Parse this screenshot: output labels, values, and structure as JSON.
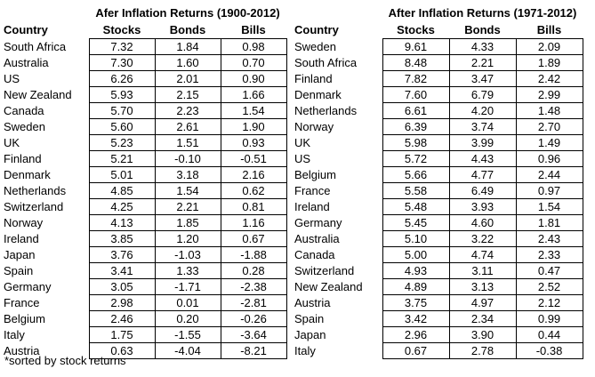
{
  "page": {
    "background": "#ffffff",
    "text_color": "#000000",
    "border_color": "#000000"
  },
  "footnote": "*sorted by stock returns",
  "chart_data": [
    {
      "type": "table",
      "title": "Afer Inflation Returns (1900-2012)",
      "columns": [
        "Country",
        "Stocks",
        "Bonds",
        "Bills"
      ],
      "rows": [
        [
          "South Africa",
          7.32,
          1.84,
          0.98
        ],
        [
          "Australia",
          7.3,
          1.6,
          0.7
        ],
        [
          "US",
          6.26,
          2.01,
          0.9
        ],
        [
          "New Zealand",
          5.93,
          2.15,
          1.66
        ],
        [
          "Canada",
          5.7,
          2.23,
          1.54
        ],
        [
          "Sweden",
          5.6,
          2.61,
          1.9
        ],
        [
          "UK",
          5.23,
          1.51,
          0.93
        ],
        [
          "Finland",
          5.21,
          -0.1,
          -0.51
        ],
        [
          "Denmark",
          5.01,
          3.18,
          2.16
        ],
        [
          "Netherlands",
          4.85,
          1.54,
          0.62
        ],
        [
          "Switzerland",
          4.25,
          2.21,
          0.81
        ],
        [
          "Norway",
          4.13,
          1.85,
          1.16
        ],
        [
          "Ireland",
          3.85,
          1.2,
          0.67
        ],
        [
          "Japan",
          3.76,
          -1.03,
          -1.88
        ],
        [
          "Spain",
          3.41,
          1.33,
          0.28
        ],
        [
          "Germany",
          3.05,
          -1.71,
          -2.38
        ],
        [
          "France",
          2.98,
          0.01,
          -2.81
        ],
        [
          "Belgium",
          2.46,
          0.2,
          -0.26
        ],
        [
          "Italy",
          1.75,
          -1.55,
          -3.64
        ],
        [
          "Austria",
          0.63,
          -4.04,
          -8.21
        ]
      ],
      "note": "sorted by stock returns descending",
      "value_format": "2 decimals"
    },
    {
      "type": "table",
      "title": "After Inflation Returns (1971-2012)",
      "columns": [
        "Country",
        "Stocks",
        "Bonds",
        "Bills"
      ],
      "rows": [
        [
          "Sweden",
          9.61,
          4.33,
          2.09
        ],
        [
          "South Africa",
          8.48,
          2.21,
          1.89
        ],
        [
          "Finland",
          7.82,
          3.47,
          2.42
        ],
        [
          "Denmark",
          7.6,
          6.79,
          2.99
        ],
        [
          "Netherlands",
          6.61,
          4.2,
          1.48
        ],
        [
          "Norway",
          6.39,
          3.74,
          2.7
        ],
        [
          "UK",
          5.98,
          3.99,
          1.49
        ],
        [
          "US",
          5.72,
          4.43,
          0.96
        ],
        [
          "Belgium",
          5.66,
          4.77,
          2.44
        ],
        [
          "France",
          5.58,
          6.49,
          0.97
        ],
        [
          "Ireland",
          5.48,
          3.93,
          1.54
        ],
        [
          "Germany",
          5.45,
          4.6,
          1.81
        ],
        [
          "Australia",
          5.1,
          3.22,
          2.43
        ],
        [
          "Canada",
          5.0,
          4.74,
          2.33
        ],
        [
          "Switzerland",
          4.93,
          3.11,
          0.47
        ],
        [
          "New Zealand",
          4.89,
          3.13,
          2.52
        ],
        [
          "Austria",
          3.75,
          4.97,
          2.12
        ],
        [
          "Spain",
          3.42,
          2.34,
          0.99
        ],
        [
          "Japan",
          2.96,
          3.9,
          0.44
        ],
        [
          "Italy",
          0.67,
          2.78,
          -0.38
        ]
      ],
      "note": "sorted by stock returns descending",
      "value_format": "2 decimals"
    }
  ]
}
